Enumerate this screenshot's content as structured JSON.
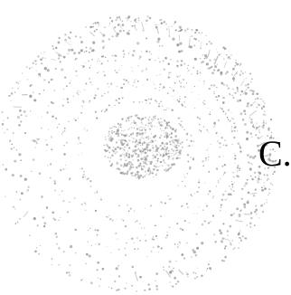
{
  "figure": {
    "label": "C."
  },
  "seal": {
    "icon": "faded-circular-seal-icon",
    "ink_color": "#9a9a9a"
  },
  "colors": {
    "background": "#ffffff",
    "text": "#000000"
  }
}
